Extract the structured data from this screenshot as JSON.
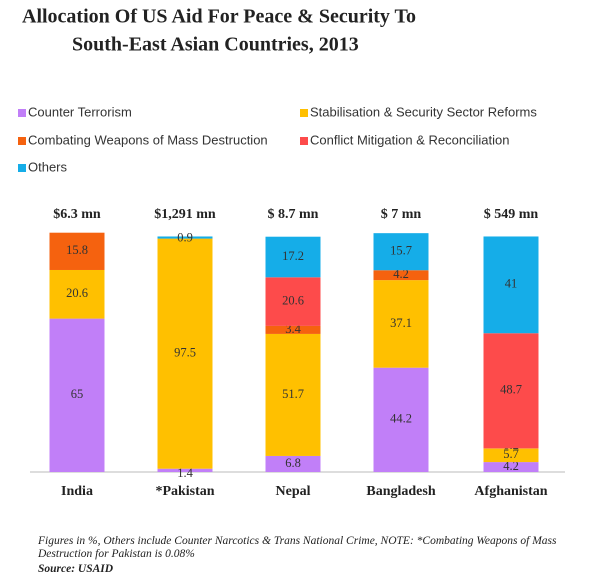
{
  "chart_data": {
    "type": "stacked_bar",
    "title": [
      "Allocation Of US Aid For Peace & Security To",
      "South-East Asian Countries, 2013"
    ],
    "categories": [
      "India",
      "*Pakistan",
      "Nepal",
      "Bangladesh",
      "Afghanistan"
    ],
    "annotations": [
      "$6.3 mn",
      "$1,291 mn",
      "$ 8.7 mn",
      "$ 7 mn",
      "$ 549 mn"
    ],
    "series": [
      {
        "name": "Counter Terrorism",
        "color": "#c17ff8",
        "values": [
          65,
          1.4,
          6.8,
          44.2,
          4.2
        ]
      },
      {
        "name": "Stabilisation & Security Sector Reforms",
        "color": "#ffc000",
        "values": [
          20.6,
          97.5,
          51.7,
          37.1,
          5.7
        ]
      },
      {
        "name": "Combating Weapons of Mass Destruction",
        "color": "#f5620f",
        "values": [
          15.8,
          null,
          3.4,
          4.2,
          0.2
        ]
      },
      {
        "name": "Conflict Mitigation & Reconciliation",
        "color": "#fd4b4b",
        "values": [
          null,
          null,
          20.6,
          null,
          48.7
        ]
      },
      {
        "name": "Others",
        "color": "#15ade8",
        "values": [
          null,
          0.9,
          17.2,
          15.7,
          41
        ]
      }
    ],
    "note": "Figures in %, Others include Counter Narcotics & Trans National Crime, NOTE: *Combating Weapons of Mass Destruction for Pakistan is 0.08%",
    "source": "Source: USAID"
  }
}
